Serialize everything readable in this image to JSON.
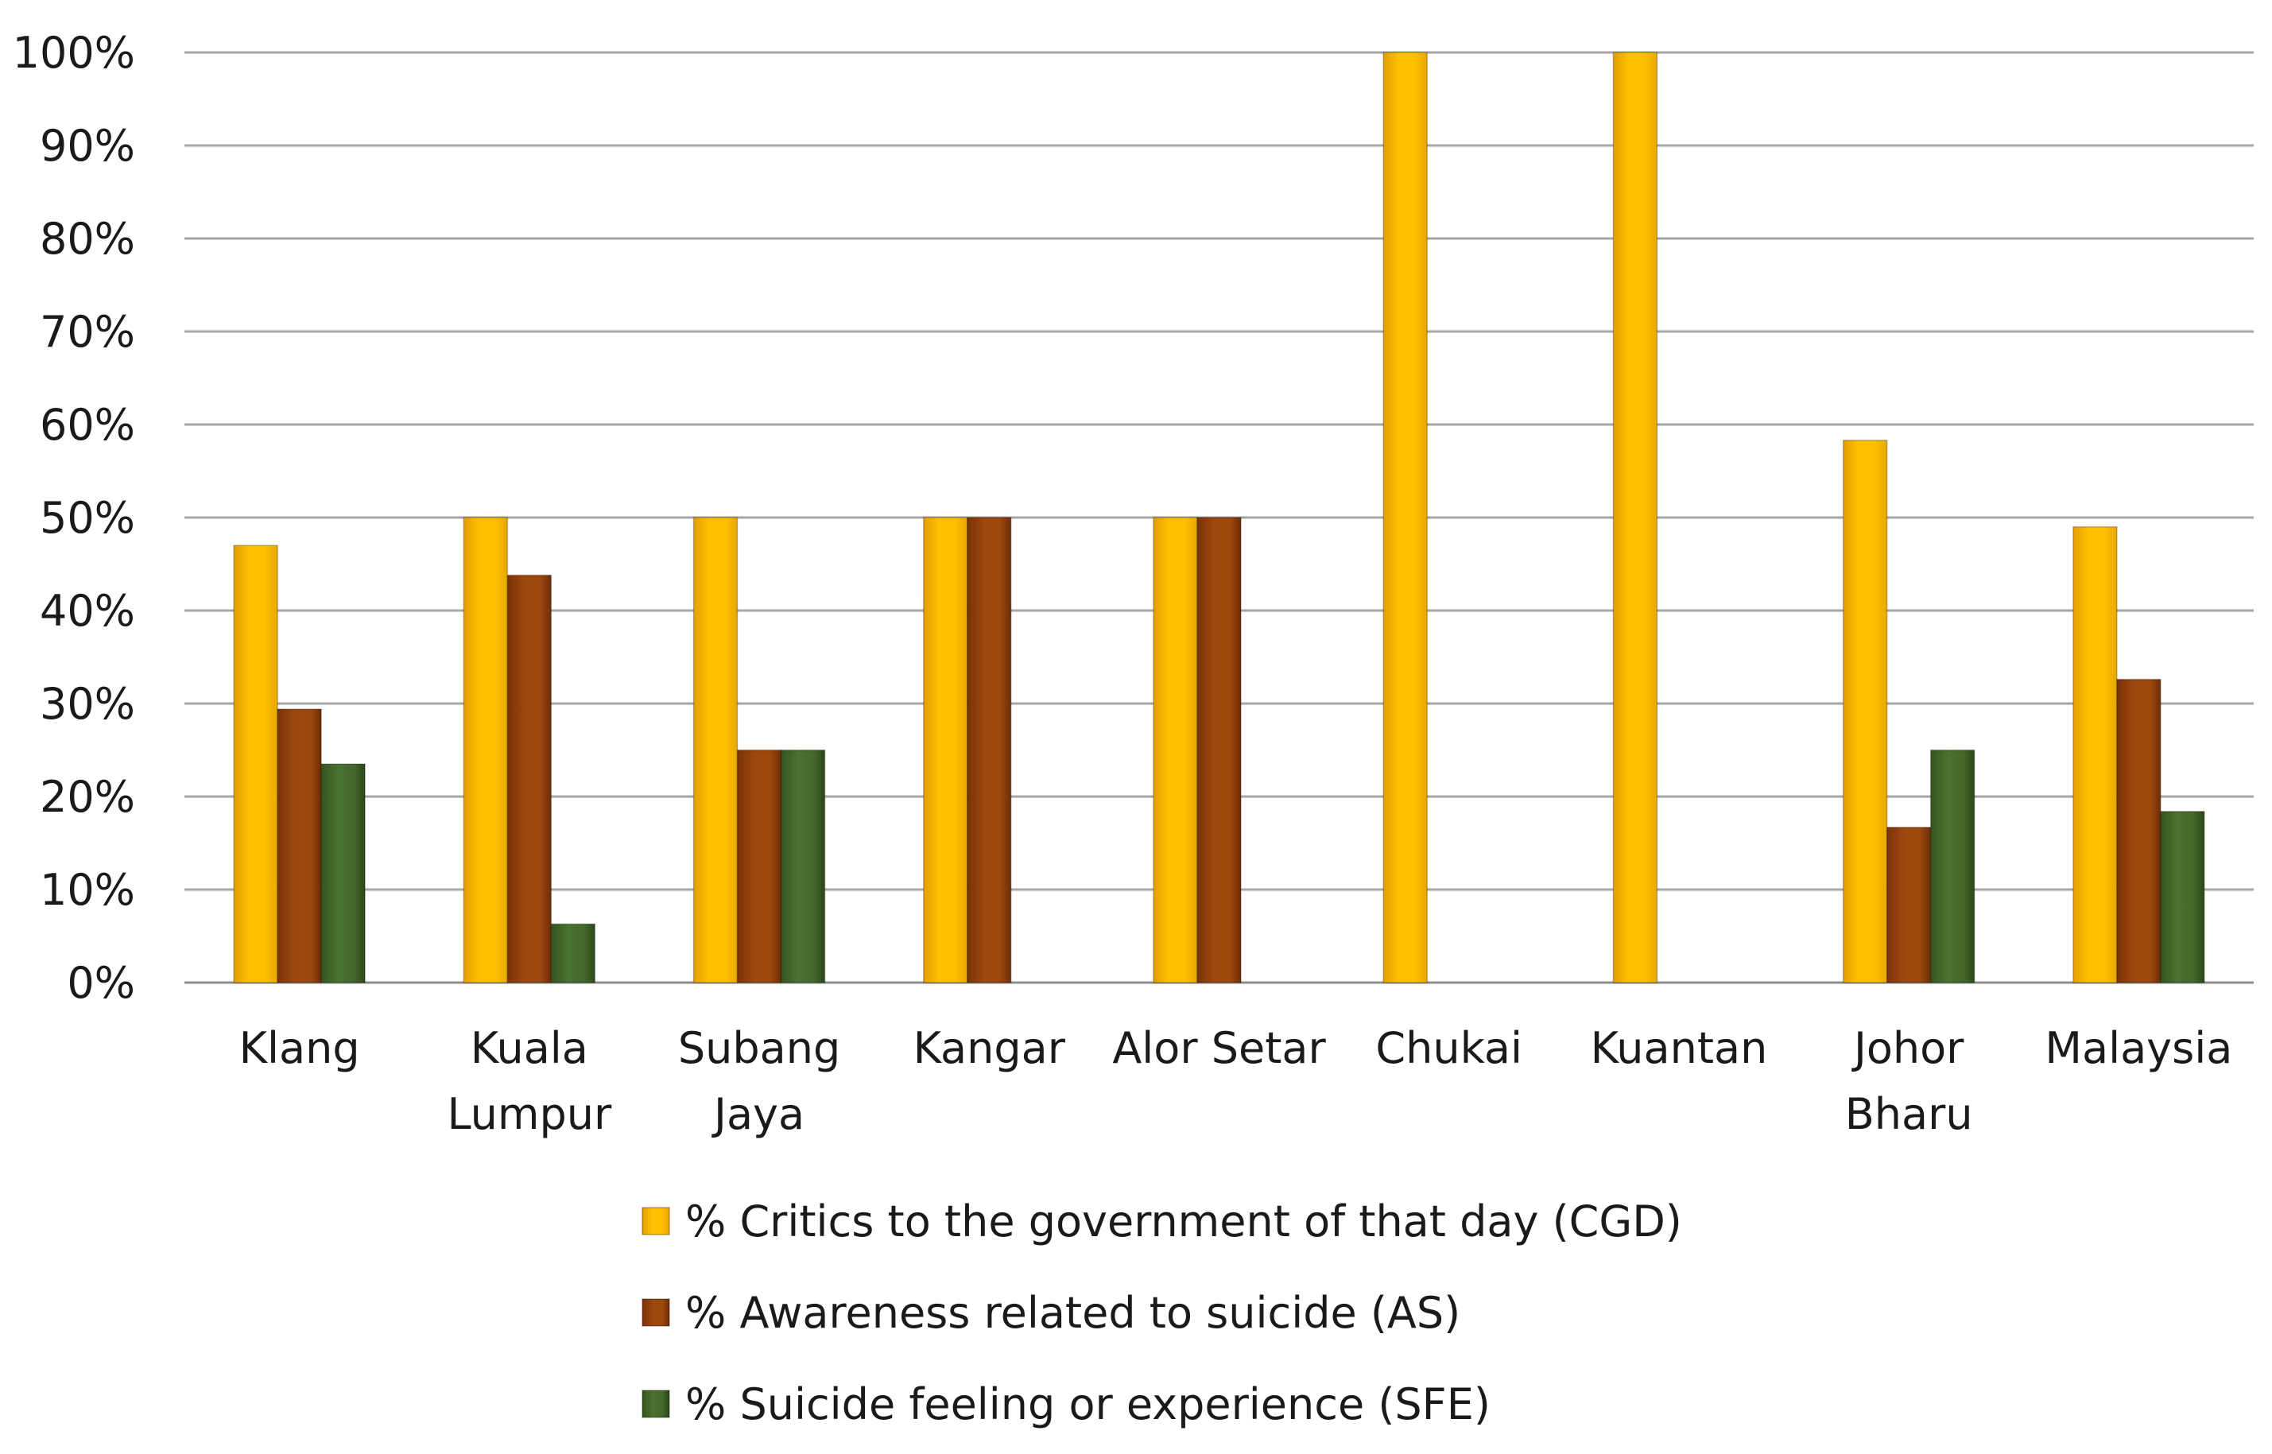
{
  "chart_data": {
    "type": "bar",
    "title": "",
    "xlabel": "",
    "ylabel": "",
    "ylim": [
      0,
      100
    ],
    "y_ticks": [
      "0%",
      "10%",
      "20%",
      "30%",
      "40%",
      "50%",
      "60%",
      "70%",
      "80%",
      "90%",
      "100%"
    ],
    "y_tick_values": [
      0,
      10,
      20,
      30,
      40,
      50,
      60,
      70,
      80,
      90,
      100
    ],
    "grid": true,
    "legend_position": "bottom",
    "categories": [
      [
        "Klang"
      ],
      [
        "Kuala",
        "Lumpur"
      ],
      [
        "Subang",
        "Jaya"
      ],
      [
        "Kangar"
      ],
      [
        "Alor Setar"
      ],
      [
        "Chukai"
      ],
      [
        "Kuantan"
      ],
      [
        "Johor",
        "Bharu"
      ],
      [
        "Malaysia"
      ]
    ],
    "series": [
      {
        "name": "% Critics to the government of that day (CGD)",
        "color": "#FFC000",
        "values": [
          47,
          50,
          50,
          50,
          50,
          100,
          100,
          58.3,
          49
        ]
      },
      {
        "name": "% Awareness related to suicide (AS)",
        "color": "#9E480E",
        "values": [
          29.4,
          43.8,
          25,
          50,
          50,
          0,
          0,
          16.7,
          32.6
        ]
      },
      {
        "name": "% Suicide feeling or experience (SFE)",
        "color": "#43682B",
        "values": [
          23.5,
          6.3,
          25,
          0,
          0,
          0,
          0,
          25,
          18.4
        ]
      }
    ]
  }
}
